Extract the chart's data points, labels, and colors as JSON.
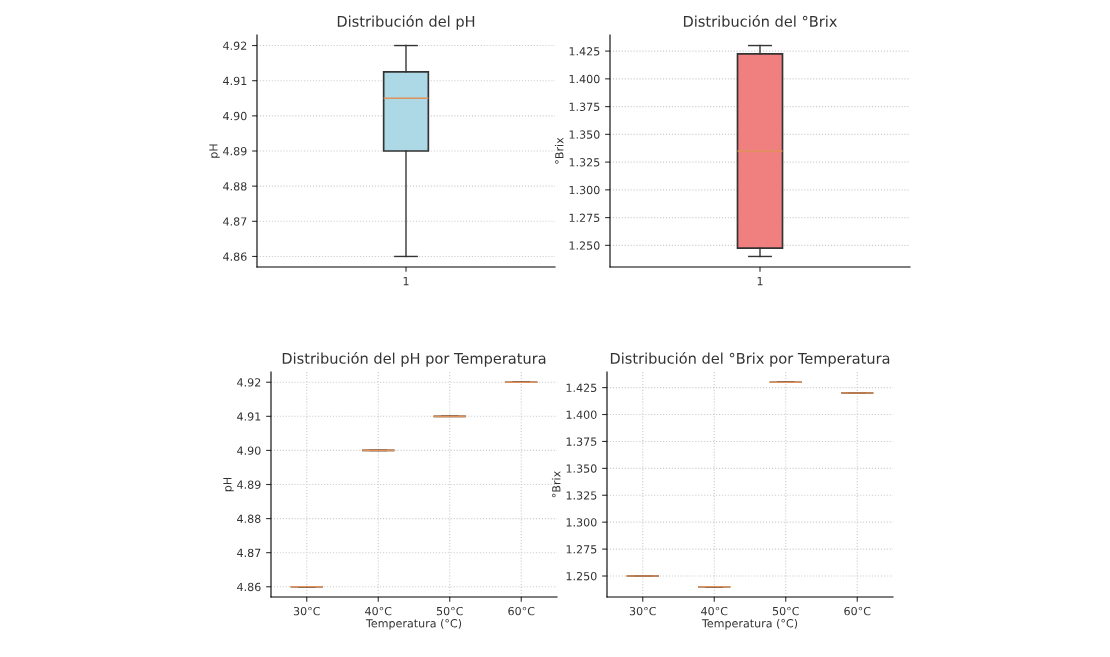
{
  "chart_data": [
    {
      "type": "box",
      "title": "Distribución del pH",
      "ylabel": "pH",
      "categories": [
        "1"
      ],
      "color": "#add8e6",
      "grid": "y",
      "boxes": [
        {
          "low": 4.86,
          "q1": 4.89,
          "median": 4.905,
          "q3": 4.9125,
          "high": 4.92
        }
      ],
      "ylim": [
        4.857,
        4.923
      ],
      "yticks": [
        {
          "value": 4.86,
          "label": "4.86"
        },
        {
          "value": 4.87,
          "label": "4.87"
        },
        {
          "value": 4.88,
          "label": "4.88"
        },
        {
          "value": 4.89,
          "label": "4.89"
        },
        {
          "value": 4.9,
          "label": "4.90"
        },
        {
          "value": 4.91,
          "label": "4.91"
        },
        {
          "value": 4.92,
          "label": "4.92"
        }
      ]
    },
    {
      "type": "box",
      "title": "Distribución del °Brix",
      "ylabel": "°Brix",
      "categories": [
        "1"
      ],
      "color": "#f08080",
      "grid": "y",
      "boxes": [
        {
          "low": 1.24,
          "q1": 1.2475,
          "median": 1.335,
          "q3": 1.4225,
          "high": 1.43
        }
      ],
      "ylim": [
        1.2305,
        1.4395
      ],
      "yticks": [
        {
          "value": 1.25,
          "label": "1.250"
        },
        {
          "value": 1.275,
          "label": "1.275"
        },
        {
          "value": 1.3,
          "label": "1.300"
        },
        {
          "value": 1.325,
          "label": "1.325"
        },
        {
          "value": 1.35,
          "label": "1.350"
        },
        {
          "value": 1.375,
          "label": "1.375"
        },
        {
          "value": 1.4,
          "label": "1.400"
        },
        {
          "value": 1.425,
          "label": "1.425"
        }
      ]
    },
    {
      "type": "box",
      "title": "Distribución del pH por Temperatura",
      "xlabel": "Temperatura (°C)",
      "ylabel": "pH",
      "categories": [
        "30°C",
        "40°C",
        "50°C",
        "60°C"
      ],
      "grid": true,
      "boxes": [
        {
          "low": 4.86,
          "q1": 4.86,
          "median": 4.86,
          "q3": 4.86,
          "high": 4.86
        },
        {
          "low": 4.9,
          "q1": 4.9,
          "median": 4.9,
          "q3": 4.9,
          "high": 4.9
        },
        {
          "low": 4.91,
          "q1": 4.91,
          "median": 4.91,
          "q3": 4.91,
          "high": 4.91
        },
        {
          "low": 4.92,
          "q1": 4.92,
          "median": 4.92,
          "q3": 4.92,
          "high": 4.92
        }
      ],
      "ylim": [
        4.857,
        4.923
      ],
      "yticks": [
        {
          "value": 4.86,
          "label": "4.86"
        },
        {
          "value": 4.87,
          "label": "4.87"
        },
        {
          "value": 4.88,
          "label": "4.88"
        },
        {
          "value": 4.89,
          "label": "4.89"
        },
        {
          "value": 4.9,
          "label": "4.90"
        },
        {
          "value": 4.91,
          "label": "4.91"
        },
        {
          "value": 4.92,
          "label": "4.92"
        }
      ]
    },
    {
      "type": "box",
      "title": "Distribución del °Brix por Temperatura",
      "xlabel": "Temperatura (°C)",
      "ylabel": "°Brix",
      "categories": [
        "30°C",
        "40°C",
        "50°C",
        "60°C"
      ],
      "grid": true,
      "boxes": [
        {
          "low": 1.25,
          "q1": 1.25,
          "median": 1.25,
          "q3": 1.25,
          "high": 1.25
        },
        {
          "low": 1.24,
          "q1": 1.24,
          "median": 1.24,
          "q3": 1.24,
          "high": 1.24
        },
        {
          "low": 1.43,
          "q1": 1.43,
          "median": 1.43,
          "q3": 1.43,
          "high": 1.43
        },
        {
          "low": 1.42,
          "q1": 1.42,
          "median": 1.42,
          "q3": 1.42,
          "high": 1.42
        }
      ],
      "ylim": [
        1.2305,
        1.4395
      ],
      "yticks": [
        {
          "value": 1.25,
          "label": "1.250"
        },
        {
          "value": 1.275,
          "label": "1.275"
        },
        {
          "value": 1.3,
          "label": "1.300"
        },
        {
          "value": 1.325,
          "label": "1.325"
        },
        {
          "value": 1.35,
          "label": "1.350"
        },
        {
          "value": 1.375,
          "label": "1.375"
        },
        {
          "value": 1.4,
          "label": "1.400"
        },
        {
          "value": 1.425,
          "label": "1.425"
        }
      ]
    }
  ]
}
